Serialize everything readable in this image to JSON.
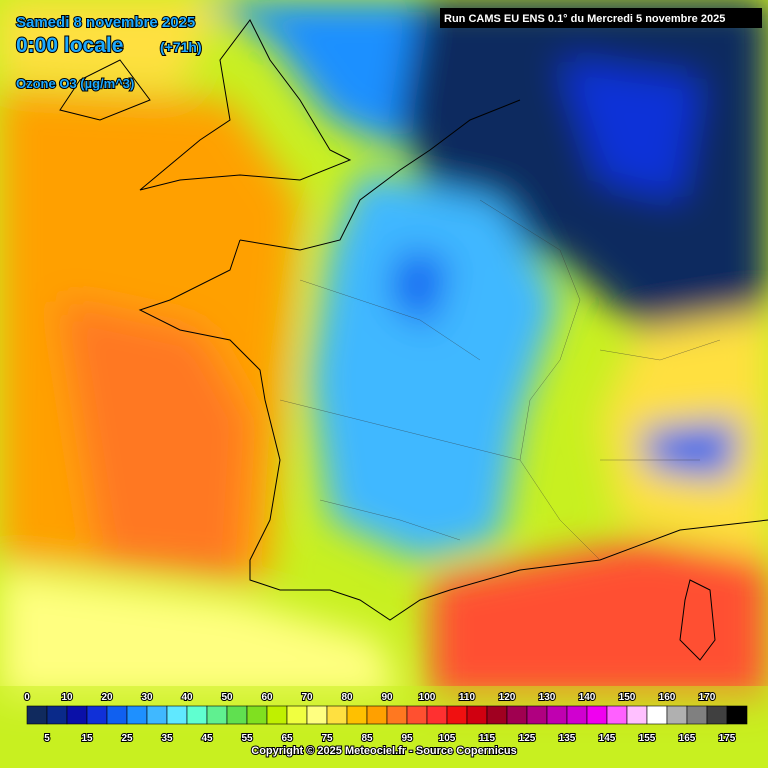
{
  "header": {
    "date": "Samedi 8 novembre 2025",
    "time": "0:00 locale",
    "lead": "(+71h)",
    "variable": "Ozone O3 (µg/m^3)",
    "run": "Run CAMS EU ENS 0.1° du Mercredi 5 novembre 2025"
  },
  "legend": {
    "labels": [
      "0",
      "5",
      "10",
      "15",
      "20",
      "25",
      "30",
      "35",
      "40",
      "45",
      "50",
      "55",
      "60",
      "65",
      "70",
      "75",
      "80",
      "85",
      "90",
      "95",
      "100",
      "105",
      "110",
      "115",
      "120",
      "125",
      "130",
      "135",
      "140",
      "145",
      "150",
      "155",
      "160",
      "165",
      "170",
      "175"
    ],
    "colors": [
      "#102a5e",
      "#0a2a8a",
      "#0a10a8",
      "#1030d8",
      "#1060f0",
      "#1e90ff",
      "#40b8ff",
      "#60e8ff",
      "#60ffd0",
      "#60f090",
      "#60e050",
      "#80e020",
      "#c0f000",
      "#f0ff40",
      "#ffff80",
      "#ffe040",
      "#ffc000",
      "#ffa000",
      "#ff7820",
      "#ff5030",
      "#ff3030",
      "#f01010",
      "#d00010",
      "#a00020",
      "#a00050",
      "#b00080",
      "#c000b0",
      "#d000d0",
      "#f000f0",
      "#ff60ff",
      "#ffc0ff",
      "#ffffff",
      "#b0b0b0",
      "#808080",
      "#404040",
      "#000000"
    ]
  },
  "footer": "Copyright © 2025 Meteociel.fr - Source Copernicus"
}
